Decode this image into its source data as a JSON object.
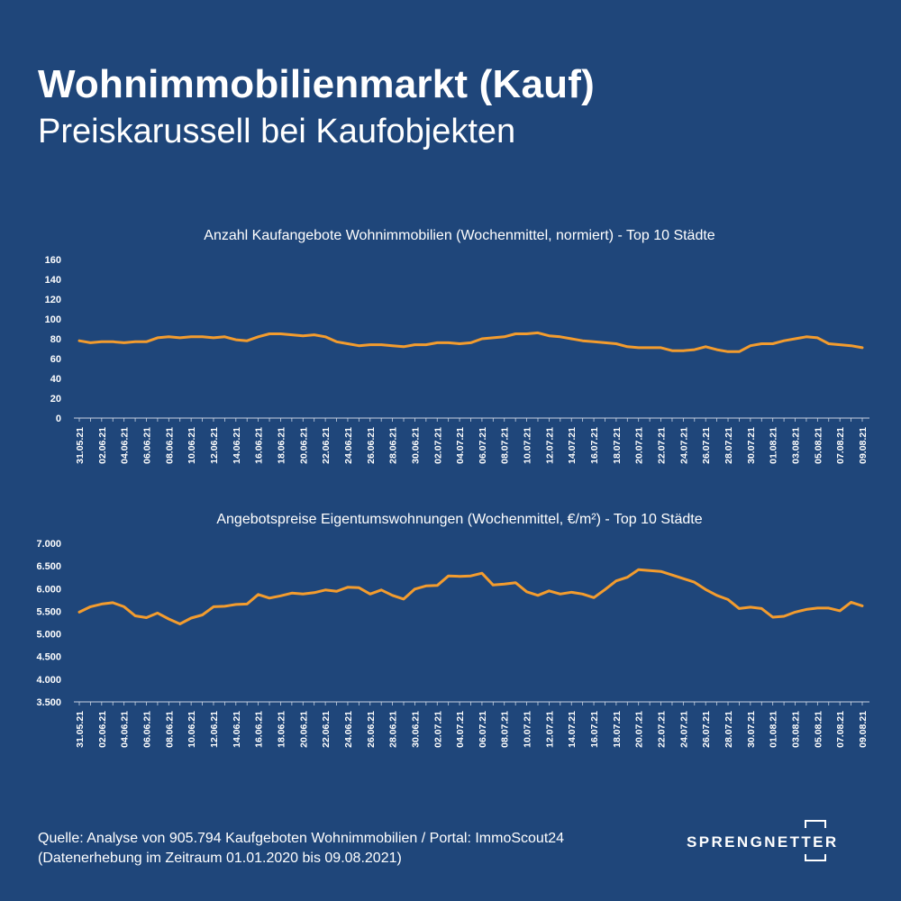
{
  "header": {
    "title": "Wohnimmobilienmarkt (Kauf)",
    "subtitle": "Preiskarussell bei Kaufobjekten"
  },
  "footer": {
    "line1": "Quelle: Analyse von 905.794 Kaufgeboten Wohnimmobilien / Portal: ImmoScout24",
    "line2": "(Datenerhebung im Zeitraum  01.01.2020 bis  09.08.2021)"
  },
  "logo": {
    "text": "SPRENGNETTER"
  },
  "colors": {
    "background": "#1f467a",
    "line": "#f39c2e",
    "text": "#ffffff"
  },
  "chart_data": [
    {
      "type": "line",
      "title": "Anzahl Kaufangebote Wohnimmobilien (Wochenmittel, normiert) - Top 10 Städte",
      "x": [
        "31.05.21",
        "01.06.21",
        "02.06.21",
        "03.06.21",
        "04.06.21",
        "05.06.21",
        "06.06.21",
        "07.06.21",
        "08.06.21",
        "09.06.21",
        "10.06.21",
        "11.06.21",
        "12.06.21",
        "13.06.21",
        "14.06.21",
        "15.06.21",
        "16.06.21",
        "17.06.21",
        "18.06.21",
        "19.06.21",
        "20.06.21",
        "21.06.21",
        "22.06.21",
        "23.06.21",
        "24.06.21",
        "25.06.21",
        "26.06.21",
        "27.06.21",
        "28.06.21",
        "29.06.21",
        "30.06.21",
        "01.07.21",
        "02.07.21",
        "03.07.21",
        "04.07.21",
        "05.07.21",
        "06.07.21",
        "07.07.21",
        "08.07.21",
        "09.07.21",
        "10.07.21",
        "11.07.21",
        "12.07.21",
        "13.07.21",
        "14.07.21",
        "15.07.21",
        "16.07.21",
        "17.07.21",
        "18.07.21",
        "19.07.21",
        "20.07.21",
        "21.07.21",
        "22.07.21",
        "23.07.21",
        "24.07.21",
        "25.07.21",
        "26.07.21",
        "27.07.21",
        "28.07.21",
        "29.07.21",
        "30.07.21",
        "31.07.21",
        "01.08.21",
        "02.08.21",
        "03.08.21",
        "04.08.21",
        "05.08.21",
        "06.08.21",
        "07.08.21",
        "08.08.21",
        "09.08.21"
      ],
      "xticks": [
        "31.05.21",
        "02.06.21",
        "04.06.21",
        "06.06.21",
        "08.06.21",
        "10.06.21",
        "12.06.21",
        "14.06.21",
        "16.06.21",
        "18.06.21",
        "20.06.21",
        "22.06.21",
        "24.06.21",
        "26.06.21",
        "28.06.21",
        "30.06.21",
        "02.07.21",
        "04.07.21",
        "06.07.21",
        "08.07.21",
        "10.07.21",
        "12.07.21",
        "14.07.21",
        "16.07.21",
        "18.07.21",
        "20.07.21",
        "22.07.21",
        "24.07.21",
        "26.07.21",
        "28.07.21",
        "30.07.21",
        "01.08.21",
        "03.08.21",
        "05.08.21",
        "07.08.21",
        "09.08.21"
      ],
      "values": [
        78,
        76,
        77,
        77,
        76,
        77,
        77,
        81,
        82,
        81,
        82,
        82,
        81,
        82,
        79,
        78,
        82,
        85,
        85,
        84,
        83,
        84,
        82,
        77,
        75,
        73,
        74,
        74,
        73,
        72,
        74,
        74,
        76,
        76,
        75,
        76,
        80,
        81,
        82,
        85,
        85,
        86,
        83,
        82,
        80,
        78,
        77,
        76,
        75,
        72,
        71,
        71,
        71,
        68,
        68,
        69,
        72,
        69,
        67,
        67,
        73,
        75,
        75,
        78,
        80,
        82,
        81,
        75,
        74,
        73,
        71
      ],
      "ylim": [
        0,
        160
      ],
      "yticks": [
        "0",
        "20",
        "40",
        "60",
        "80",
        "100",
        "120",
        "140",
        "160"
      ],
      "ytick_values": [
        0,
        20,
        40,
        60,
        80,
        100,
        120,
        140,
        160
      ],
      "grid": false,
      "legend": "none"
    },
    {
      "type": "line",
      "title": "Angebotspreise Eigentumswohnungen (Wochenmittel, €/m²) - Top 10 Städte",
      "x": [
        "31.05.21",
        "01.06.21",
        "02.06.21",
        "03.06.21",
        "04.06.21",
        "05.06.21",
        "06.06.21",
        "07.06.21",
        "08.06.21",
        "09.06.21",
        "10.06.21",
        "11.06.21",
        "12.06.21",
        "13.06.21",
        "14.06.21",
        "15.06.21",
        "16.06.21",
        "17.06.21",
        "18.06.21",
        "19.06.21",
        "20.06.21",
        "21.06.21",
        "22.06.21",
        "23.06.21",
        "24.06.21",
        "25.06.21",
        "26.06.21",
        "27.06.21",
        "28.06.21",
        "29.06.21",
        "30.06.21",
        "01.07.21",
        "02.07.21",
        "03.07.21",
        "04.07.21",
        "05.07.21",
        "06.07.21",
        "07.07.21",
        "08.07.21",
        "09.07.21",
        "10.07.21",
        "11.07.21",
        "12.07.21",
        "13.07.21",
        "14.07.21",
        "15.07.21",
        "16.07.21",
        "17.07.21",
        "18.07.21",
        "19.07.21",
        "20.07.21",
        "21.07.21",
        "22.07.21",
        "23.07.21",
        "24.07.21",
        "25.07.21",
        "26.07.21",
        "27.07.21",
        "28.07.21",
        "29.07.21",
        "30.07.21",
        "31.07.21",
        "01.08.21",
        "02.08.21",
        "03.08.21",
        "04.08.21",
        "05.08.21",
        "06.08.21",
        "07.08.21",
        "08.08.21",
        "09.08.21"
      ],
      "xticks": [
        "31.05.21",
        "02.06.21",
        "04.06.21",
        "06.06.21",
        "08.06.21",
        "10.06.21",
        "12.06.21",
        "14.06.21",
        "16.06.21",
        "18.06.21",
        "20.06.21",
        "22.06.21",
        "24.06.21",
        "26.06.21",
        "28.06.21",
        "30.06.21",
        "02.07.21",
        "04.07.21",
        "06.07.21",
        "08.07.21",
        "10.07.21",
        "12.07.21",
        "14.07.21",
        "16.07.21",
        "18.07.21",
        "20.07.21",
        "22.07.21",
        "24.07.21",
        "26.07.21",
        "28.07.21",
        "30.07.21",
        "01.08.21",
        "03.08.21",
        "05.08.21",
        "07.08.21",
        "09.08.21"
      ],
      "values": [
        5480,
        5600,
        5660,
        5690,
        5600,
        5400,
        5360,
        5460,
        5330,
        5220,
        5350,
        5420,
        5600,
        5610,
        5650,
        5660,
        5870,
        5790,
        5840,
        5900,
        5880,
        5910,
        5970,
        5940,
        6030,
        6020,
        5880,
        5970,
        5850,
        5770,
        5990,
        6060,
        6070,
        6280,
        6270,
        6280,
        6340,
        6080,
        6100,
        6130,
        5930,
        5850,
        5950,
        5880,
        5920,
        5880,
        5800,
        5980,
        6170,
        6250,
        6420,
        6400,
        6380,
        6300,
        6220,
        6140,
        5980,
        5850,
        5760,
        5560,
        5590,
        5560,
        5370,
        5390,
        5480,
        5540,
        5570,
        5570,
        5510,
        5700,
        5620
      ],
      "ylim": [
        3500,
        7000
      ],
      "yticks": [
        "3.500",
        "4.000",
        "4.500",
        "5.000",
        "5.500",
        "6.000",
        "6.500",
        "7.000"
      ],
      "ytick_values": [
        3500,
        4000,
        4500,
        5000,
        5500,
        6000,
        6500,
        7000
      ],
      "grid": false,
      "legend": "none"
    }
  ]
}
